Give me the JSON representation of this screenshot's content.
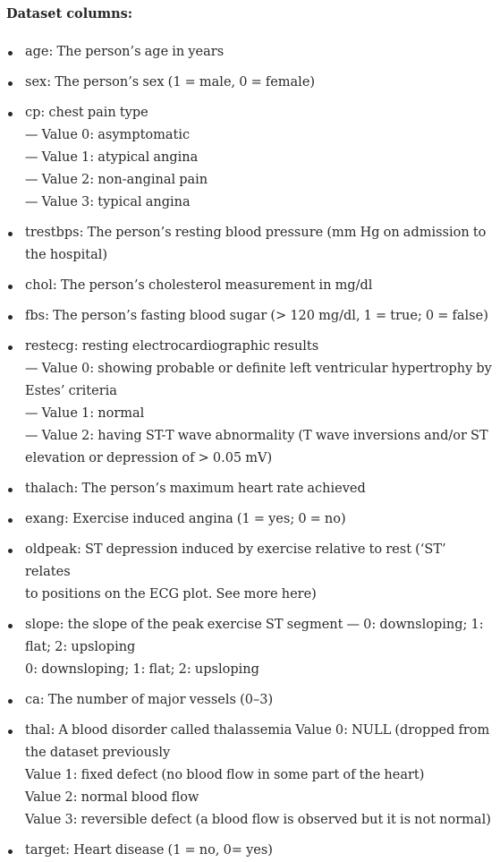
{
  "heading": "Dataset columns:",
  "items": [
    {
      "lines": [
        "age: The person’s age in years"
      ]
    },
    {
      "lines": [
        "sex: The person’s sex (1 = male, 0 = female)"
      ]
    },
    {
      "lines": [
        "cp: chest pain type",
        "— Value 0: asymptomatic",
        "— Value 1: atypical angina",
        "— Value 2: non-anginal pain",
        "— Value 3: typical angina"
      ]
    },
    {
      "lines": [
        "trestbps: The person’s resting blood pressure (mm Hg on admission to",
        "the hospital)"
      ]
    },
    {
      "lines": [
        "chol: The person’s cholesterol measurement in mg/dl"
      ]
    },
    {
      "lines": [
        "fbs: The person’s fasting blood sugar (> 120 mg/dl, 1 = true; 0 = false)"
      ]
    },
    {
      "lines": [
        "restecg: resting electrocardiographic results",
        "— Value 0: showing probable or definite left ventricular hypertrophy by",
        "Estes’ criteria",
        "— Value 1: normal",
        "— Value 2: having ST-T wave abnormality (T wave inversions and/or ST",
        "elevation or depression of > 0.05 mV)"
      ]
    },
    {
      "lines": [
        "thalach: The person’s maximum heart rate achieved"
      ]
    },
    {
      "lines": [
        "exang: Exercise induced angina (1 = yes; 0 = no)"
      ]
    },
    {
      "lines": [
        "oldpeak: ST depression induced by exercise relative to rest (‘ST’ relates",
        "to positions on the ECG plot. See more here)"
      ]
    },
    {
      "lines": [
        "slope: the slope of the peak exercise ST segment — 0: downsloping; 1:",
        "flat; 2: upsloping",
        "0: downsloping; 1: flat; 2: upsloping"
      ]
    },
    {
      "lines": [
        "ca: The number of major vessels (0–3)"
      ]
    },
    {
      "lines": [
        "thal: A blood disorder called thalassemia Value 0: NULL (dropped from",
        "the dataset previously",
        "Value 1: fixed defect (no blood flow in some part of the heart)",
        "Value 2: normal blood flow",
        "Value 3: reversible defect (a blood flow is observed but it is not normal)"
      ]
    },
    {
      "lines": [
        "target: Heart disease (1 = no, 0= yes)"
      ]
    }
  ]
}
